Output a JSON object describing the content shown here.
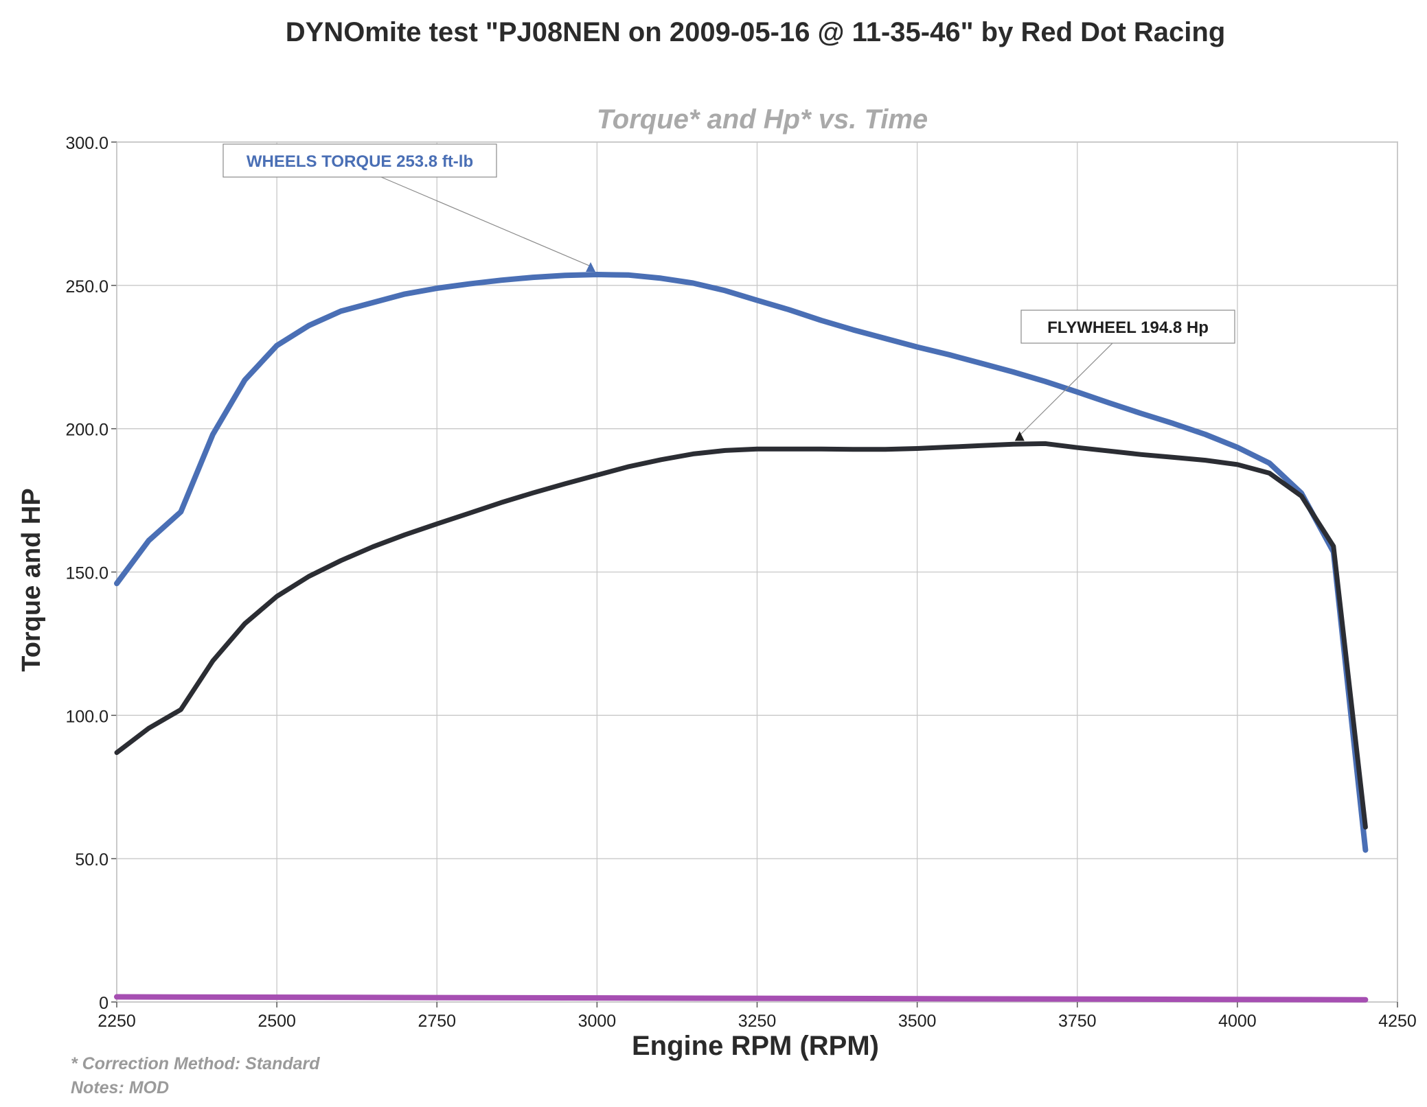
{
  "header": {
    "title": "DYNOmite test \"PJ08NEN on 2009-05-16 @ 11-35-46\" by Red Dot Racing"
  },
  "footer": {
    "correction_note": "* Correction Method: Standard",
    "notes": "Notes: MOD"
  },
  "chart_data": {
    "type": "line",
    "title": "DYNOmite test \"PJ08NEN on 2009-05-16 @ 11-35-46\" by Red Dot Racing",
    "subtitle": "Torque* and Hp* vs. Time",
    "xlabel": "Engine RPM (RPM)",
    "ylabel": "Torque and HP",
    "xlim": [
      2250,
      4250
    ],
    "ylim": [
      0,
      300
    ],
    "x_ticks": [
      "2250",
      "2500",
      "2750",
      "3000",
      "3250",
      "3500",
      "3750",
      "4000",
      "4250"
    ],
    "y_ticks": [
      "0",
      "50.0",
      "100.0",
      "150.0",
      "200.0",
      "250.0",
      "300.0"
    ],
    "grid": true,
    "colors": {
      "torque": "#4a6fb5",
      "flywheel": "#2b2d33",
      "baseline": "#a64fb2",
      "grid": "#c8c8c8",
      "subtitle": "#a9a9a9",
      "note": "#9a9a9a"
    },
    "series": [
      {
        "key": "torque",
        "x": [
          2250,
          2300,
          2350,
          2400,
          2450,
          2500,
          2550,
          2600,
          2650,
          2700,
          2750,
          2800,
          2850,
          2900,
          2950,
          3000,
          3050,
          3100,
          3150,
          3200,
          3250,
          3300,
          3350,
          3400,
          3450,
          3500,
          3550,
          3600,
          3650,
          3700,
          3750,
          3800,
          3850,
          3900,
          3950,
          4000,
          4050,
          4100,
          4150,
          4200
        ],
        "values": [
          146,
          161,
          171,
          198,
          217,
          229,
          236,
          241,
          244,
          247,
          249,
          250.5,
          251.8,
          252.8,
          253.5,
          253.8,
          253.6,
          252.5,
          250.8,
          248.2,
          244.8,
          241.5,
          237.8,
          234.5,
          231.5,
          228.5,
          225.8,
          222.8,
          219.8,
          216.5,
          212.8,
          209.0,
          205.3,
          201.8,
          198.0,
          193.5,
          188.0,
          177.5,
          157.0,
          53.0
        ]
      },
      {
        "key": "flywheel",
        "x": [
          2250,
          2300,
          2350,
          2400,
          2450,
          2500,
          2550,
          2600,
          2650,
          2700,
          2750,
          2800,
          2850,
          2900,
          2950,
          3000,
          3050,
          3100,
          3150,
          3200,
          3250,
          3300,
          3350,
          3400,
          3450,
          3500,
          3550,
          3600,
          3650,
          3700,
          3750,
          3800,
          3850,
          3900,
          3950,
          4000,
          4050,
          4100,
          4150,
          4200
        ],
        "values": [
          87,
          95.5,
          102,
          119,
          132,
          141.5,
          148.5,
          154,
          158.8,
          163,
          166.8,
          170.5,
          174.2,
          177.6,
          180.8,
          183.8,
          186.8,
          189.2,
          191.2,
          192.4,
          192.9,
          192.9,
          192.9,
          192.8,
          192.8,
          193.1,
          193.6,
          194.1,
          194.6,
          194.8,
          193.4,
          192.2,
          191.0,
          190.0,
          189.0,
          187.5,
          184.5,
          176.5,
          159.0,
          61.0
        ]
      },
      {
        "key": "baseline",
        "x": [
          2250,
          4200
        ],
        "values": [
          1.8,
          0.8
        ]
      }
    ],
    "annotations": [
      {
        "label": "WHEELS TORQUE 253.8 ft-lb",
        "point": [
          2990,
          253.8
        ],
        "color": "#4a6fb5"
      },
      {
        "label": "FLYWHEEL 194.8 Hp",
        "point": [
          3660,
          194.8
        ],
        "color": "#1f1f1f"
      }
    ]
  }
}
